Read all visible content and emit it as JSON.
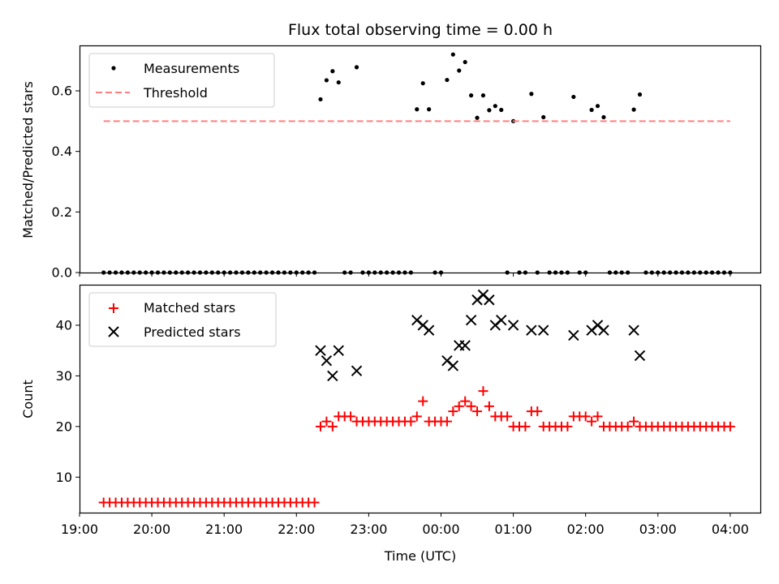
{
  "chart_data": [
    {
      "type": "scatter",
      "title": "Flux total observing time = 0.00 h",
      "xlabel": "",
      "ylabel": "Matched/Predicted stars",
      "ylim": [
        0,
        0.75
      ],
      "yticks": [
        0.0,
        0.2,
        0.4,
        0.6
      ],
      "ytick_labels": [
        "0.0",
        "0.2",
        "0.4",
        "0.6"
      ],
      "xlim": [
        "19:00",
        "04:25"
      ],
      "legend_position": "upper-left",
      "series": [
        {
          "name": "Measurements",
          "color": "#000000",
          "marker": "dot",
          "points": [
            [
              "19:20",
              0
            ],
            [
              "19:25",
              0
            ],
            [
              "19:30",
              0
            ],
            [
              "19:35",
              0
            ],
            [
              "19:40",
              0
            ],
            [
              "19:45",
              0
            ],
            [
              "19:50",
              0
            ],
            [
              "19:55",
              0
            ],
            [
              "20:00",
              0
            ],
            [
              "20:05",
              0
            ],
            [
              "20:10",
              0
            ],
            [
              "20:15",
              0
            ],
            [
              "20:20",
              0
            ],
            [
              "20:25",
              0
            ],
            [
              "20:30",
              0
            ],
            [
              "20:35",
              0
            ],
            [
              "20:40",
              0
            ],
            [
              "20:45",
              0
            ],
            [
              "20:50",
              0
            ],
            [
              "20:55",
              0
            ],
            [
              "21:00",
              0
            ],
            [
              "21:05",
              0
            ],
            [
              "21:10",
              0
            ],
            [
              "21:15",
              0
            ],
            [
              "21:20",
              0
            ],
            [
              "21:25",
              0
            ],
            [
              "21:30",
              0
            ],
            [
              "21:35",
              0
            ],
            [
              "21:40",
              0
            ],
            [
              "21:45",
              0
            ],
            [
              "21:50",
              0
            ],
            [
              "21:55",
              0
            ],
            [
              "22:00",
              0
            ],
            [
              "22:05",
              0
            ],
            [
              "22:10",
              0
            ],
            [
              "22:15",
              0
            ],
            [
              "22:20",
              0.572
            ],
            [
              "22:25",
              0.635
            ],
            [
              "22:30",
              0.665
            ],
            [
              "22:35",
              0.628
            ],
            [
              "22:40",
              0
            ],
            [
              "22:45",
              0
            ],
            [
              "22:50",
              0.678
            ],
            [
              "22:55",
              0
            ],
            [
              "23:00",
              0
            ],
            [
              "23:05",
              0
            ],
            [
              "23:10",
              0
            ],
            [
              "23:15",
              0
            ],
            [
              "23:20",
              0
            ],
            [
              "23:25",
              0
            ],
            [
              "23:30",
              0
            ],
            [
              "23:35",
              0
            ],
            [
              "23:40",
              0.539
            ],
            [
              "23:45",
              0.625
            ],
            [
              "23:50",
              0.539
            ],
            [
              "23:55",
              0
            ],
            [
              "00:00",
              0
            ],
            [
              "00:05",
              0.636
            ],
            [
              "00:10",
              0.72
            ],
            [
              "00:15",
              0.667
            ],
            [
              "00:20",
              0.695
            ],
            [
              "00:25",
              0.585
            ],
            [
              "00:30",
              0.511
            ],
            [
              "00:35",
              0.585
            ],
            [
              "00:40",
              0.536
            ],
            [
              "00:45",
              0.55
            ],
            [
              "00:50",
              0.537
            ],
            [
              "00:55",
              0
            ],
            [
              "01:00",
              0.5
            ],
            [
              "01:05",
              0
            ],
            [
              "01:10",
              0
            ],
            [
              "01:15",
              0.59
            ],
            [
              "01:20",
              0
            ],
            [
              "01:25",
              0.513
            ],
            [
              "01:30",
              0
            ],
            [
              "01:35",
              0
            ],
            [
              "01:40",
              0
            ],
            [
              "01:45",
              0
            ],
            [
              "01:50",
              0.58
            ],
            [
              "01:55",
              0
            ],
            [
              "02:00",
              0
            ],
            [
              "02:05",
              0.537
            ],
            [
              "02:10",
              0.55
            ],
            [
              "02:15",
              0.513
            ],
            [
              "02:20",
              0
            ],
            [
              "02:25",
              0
            ],
            [
              "02:30",
              0
            ],
            [
              "02:35",
              0
            ],
            [
              "02:40",
              0.538
            ],
            [
              "02:45",
              0.588
            ],
            [
              "02:50",
              0
            ],
            [
              "02:55",
              0
            ],
            [
              "03:00",
              0
            ],
            [
              "03:05",
              0
            ],
            [
              "03:10",
              0
            ],
            [
              "03:15",
              0
            ],
            [
              "03:20",
              0
            ],
            [
              "03:25",
              0
            ],
            [
              "03:30",
              0
            ],
            [
              "03:35",
              0
            ],
            [
              "03:40",
              0
            ],
            [
              "03:45",
              0
            ],
            [
              "03:50",
              0
            ],
            [
              "03:55",
              0
            ],
            [
              "04:00",
              0
            ]
          ]
        },
        {
          "name": "Threshold",
          "color": "#ff7f7f",
          "style": "dashed",
          "points": [
            [
              "19:20",
              0.5
            ],
            [
              "04:00",
              0.5
            ]
          ]
        }
      ]
    },
    {
      "type": "scatter",
      "title": "",
      "xlabel": "Time (UTC)",
      "ylabel": "Count",
      "ylim": [
        3,
        48
      ],
      "yticks": [
        10,
        20,
        30,
        40
      ],
      "ytick_labels": [
        "10",
        "20",
        "30",
        "40"
      ],
      "xlim": [
        "19:00",
        "04:25"
      ],
      "xticks": [
        "19:00",
        "20:00",
        "21:00",
        "22:00",
        "23:00",
        "00:00",
        "01:00",
        "02:00",
        "03:00",
        "04:00"
      ],
      "legend_position": "upper-left",
      "series": [
        {
          "name": "Matched stars",
          "color": "#ff0000",
          "marker": "plus",
          "points": [
            [
              "19:20",
              5
            ],
            [
              "19:25",
              5
            ],
            [
              "19:30",
              5
            ],
            [
              "19:35",
              5
            ],
            [
              "19:40",
              5
            ],
            [
              "19:45",
              5
            ],
            [
              "19:50",
              5
            ],
            [
              "19:55",
              5
            ],
            [
              "20:00",
              5
            ],
            [
              "20:05",
              5
            ],
            [
              "20:10",
              5
            ],
            [
              "20:15",
              5
            ],
            [
              "20:20",
              5
            ],
            [
              "20:25",
              5
            ],
            [
              "20:30",
              5
            ],
            [
              "20:35",
              5
            ],
            [
              "20:40",
              5
            ],
            [
              "20:45",
              5
            ],
            [
              "20:50",
              5
            ],
            [
              "20:55",
              5
            ],
            [
              "21:00",
              5
            ],
            [
              "21:05",
              5
            ],
            [
              "21:10",
              5
            ],
            [
              "21:15",
              5
            ],
            [
              "21:20",
              5
            ],
            [
              "21:25",
              5
            ],
            [
              "21:30",
              5
            ],
            [
              "21:35",
              5
            ],
            [
              "21:40",
              5
            ],
            [
              "21:45",
              5
            ],
            [
              "21:50",
              5
            ],
            [
              "21:55",
              5
            ],
            [
              "22:00",
              5
            ],
            [
              "22:05",
              5
            ],
            [
              "22:10",
              5
            ],
            [
              "22:15",
              5
            ],
            [
              "22:20",
              20
            ],
            [
              "22:25",
              21
            ],
            [
              "22:30",
              20
            ],
            [
              "22:35",
              22
            ],
            [
              "22:40",
              22
            ],
            [
              "22:45",
              22
            ],
            [
              "22:50",
              21
            ],
            [
              "22:55",
              21
            ],
            [
              "23:00",
              21
            ],
            [
              "23:05",
              21
            ],
            [
              "23:10",
              21
            ],
            [
              "23:15",
              21
            ],
            [
              "23:20",
              21
            ],
            [
              "23:25",
              21
            ],
            [
              "23:30",
              21
            ],
            [
              "23:35",
              21
            ],
            [
              "23:40",
              22
            ],
            [
              "23:45",
              25
            ],
            [
              "23:50",
              21
            ],
            [
              "23:55",
              21
            ],
            [
              "00:00",
              21
            ],
            [
              "00:05",
              21
            ],
            [
              "00:10",
              23
            ],
            [
              "00:15",
              24
            ],
            [
              "00:20",
              25
            ],
            [
              "00:25",
              24
            ],
            [
              "00:30",
              23
            ],
            [
              "00:35",
              27
            ],
            [
              "00:40",
              24
            ],
            [
              "00:45",
              22
            ],
            [
              "00:50",
              22
            ],
            [
              "00:55",
              22
            ],
            [
              "01:00",
              20
            ],
            [
              "01:05",
              20
            ],
            [
              "01:10",
              20
            ],
            [
              "01:15",
              23
            ],
            [
              "01:20",
              23
            ],
            [
              "01:25",
              20
            ],
            [
              "01:30",
              20
            ],
            [
              "01:35",
              20
            ],
            [
              "01:40",
              20
            ],
            [
              "01:45",
              20
            ],
            [
              "01:50",
              22
            ],
            [
              "01:55",
              22
            ],
            [
              "02:00",
              22
            ],
            [
              "02:05",
              21
            ],
            [
              "02:10",
              22
            ],
            [
              "02:15",
              20
            ],
            [
              "02:20",
              20
            ],
            [
              "02:25",
              20
            ],
            [
              "02:30",
              20
            ],
            [
              "02:35",
              20
            ],
            [
              "02:40",
              21
            ],
            [
              "02:45",
              20
            ],
            [
              "02:50",
              20
            ],
            [
              "02:55",
              20
            ],
            [
              "03:00",
              20
            ],
            [
              "03:05",
              20
            ],
            [
              "03:10",
              20
            ],
            [
              "03:15",
              20
            ],
            [
              "03:20",
              20
            ],
            [
              "03:25",
              20
            ],
            [
              "03:30",
              20
            ],
            [
              "03:35",
              20
            ],
            [
              "03:40",
              20
            ],
            [
              "03:45",
              20
            ],
            [
              "03:50",
              20
            ],
            [
              "03:55",
              20
            ],
            [
              "04:00",
              20
            ]
          ]
        },
        {
          "name": "Predicted stars",
          "color": "#000000",
          "marker": "x",
          "points": [
            [
              "22:20",
              35
            ],
            [
              "22:25",
              33
            ],
            [
              "22:30",
              30
            ],
            [
              "22:35",
              35
            ],
            [
              "22:50",
              31
            ],
            [
              "23:40",
              41
            ],
            [
              "23:45",
              40
            ],
            [
              "23:50",
              39
            ],
            [
              "00:05",
              33
            ],
            [
              "00:10",
              32
            ],
            [
              "00:15",
              36
            ],
            [
              "00:20",
              36
            ],
            [
              "00:25",
              41
            ],
            [
              "00:30",
              45
            ],
            [
              "00:35",
              46
            ],
            [
              "00:40",
              45
            ],
            [
              "00:45",
              40
            ],
            [
              "00:50",
              41
            ],
            [
              "01:00",
              40
            ],
            [
              "01:15",
              39
            ],
            [
              "01:25",
              39
            ],
            [
              "01:50",
              38
            ],
            [
              "02:05",
              39
            ],
            [
              "02:10",
              40
            ],
            [
              "02:15",
              39
            ],
            [
              "02:40",
              39
            ],
            [
              "02:45",
              34
            ]
          ]
        }
      ]
    }
  ]
}
